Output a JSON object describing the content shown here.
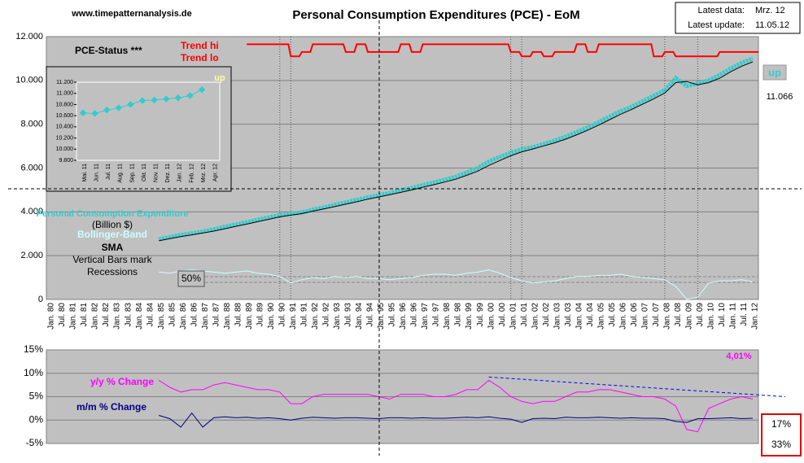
{
  "site": "www.timepatternanalysis.de",
  "info": {
    "latest_data_label": "Latest data:",
    "latest_data": "Mrz. 12",
    "latest_update_label": "Latest update:",
    "latest_update": "11.05.12"
  },
  "status_box": {
    "status": "up",
    "last_value": "11.066"
  },
  "corner_box": [
    "17%",
    "33%"
  ],
  "chart_data": [
    {
      "type": "line",
      "title": "Personal Consumption Expenditures (PCE) - EoM",
      "categories": [
        "Jan. 80",
        "Jul. 80",
        "Jan. 81",
        "Jul. 81",
        "Jan. 82",
        "Jul. 82",
        "Jan. 83",
        "Jul. 83",
        "Jan. 84",
        "Jul. 84",
        "Jan. 85",
        "Jul. 85",
        "Jan. 86",
        "Jul. 86",
        "Jan. 87",
        "Jul. 87",
        "Jan. 88",
        "Jul. 88",
        "Jan. 89",
        "Jul. 89",
        "Jan. 90",
        "Jul. 90",
        "Jan. 91",
        "Jul. 91",
        "Jan. 92",
        "Jul. 92",
        "Jan. 93",
        "Jul. 93",
        "Jan. 94",
        "Jul. 94",
        "Jan. 95",
        "Jul. 95",
        "Jan. 96",
        "Jul. 96",
        "Jan. 97",
        "Jul. 97",
        "Jan. 98",
        "Jul. 98",
        "Jan. 99",
        "Jul. 99",
        "Jan. 00",
        "Jul. 00",
        "Jan. 01",
        "Jul. 01",
        "Jan. 02",
        "Jul. 02",
        "Jan. 03",
        "Jul. 03",
        "Jan. 04",
        "Jul. 04",
        "Jan. 05",
        "Jul. 05",
        "Jan. 06",
        "Jul. 06",
        "Jan. 07",
        "Jul. 07",
        "Jan. 08",
        "Jul. 08",
        "Jan. 09",
        "Jul. 09",
        "Jan. 10",
        "Jul. 10",
        "Jan. 11",
        "Jul. 11",
        "Jan. 12"
      ],
      "ylim": [
        0,
        12000
      ],
      "yticks": [
        0,
        {
          "value": 2000,
          "label": "2.000"
        },
        {
          "value": 4000,
          "label": "4.000"
        },
        {
          "value": 6000,
          "label": "6.000"
        },
        {
          "value": 8000,
          "label": "8.000"
        },
        {
          "value": 10000,
          "label": "10.000"
        },
        {
          "value": 12000,
          "label": "12.000"
        }
      ],
      "grid": true,
      "series": [
        {
          "name": "Personal Consumption Expenditure",
          "color": "#33cccc",
          "values": [
            null,
            null,
            null,
            null,
            null,
            null,
            null,
            null,
            null,
            null,
            2750,
            2850,
            2950,
            3020,
            3100,
            3200,
            3320,
            3420,
            3530,
            3640,
            3750,
            3850,
            3900,
            3970,
            4100,
            4200,
            4320,
            4430,
            4550,
            4660,
            4760,
            4860,
            4980,
            5090,
            5220,
            5340,
            5460,
            5600,
            5800,
            6000,
            6300,
            6500,
            6700,
            6850,
            6950,
            7100,
            7250,
            7430,
            7650,
            7850,
            8100,
            8350,
            8600,
            8800,
            9050,
            9300,
            9550,
            10100,
            9750,
            9850,
            10000,
            10250,
            10550,
            10800,
            11000
          ]
        },
        {
          "name": "SMA",
          "color": "#000000",
          "values": [
            null,
            null,
            null,
            null,
            null,
            null,
            null,
            null,
            null,
            null,
            2680,
            2780,
            2870,
            2950,
            3030,
            3120,
            3230,
            3340,
            3440,
            3550,
            3660,
            3770,
            3850,
            3920,
            4030,
            4130,
            4240,
            4350,
            4460,
            4580,
            4680,
            4780,
            4890,
            5000,
            5120,
            5240,
            5360,
            5490,
            5670,
            5860,
            6120,
            6340,
            6560,
            6740,
            6870,
            7010,
            7150,
            7320,
            7520,
            7730,
            7960,
            8210,
            8460,
            8680,
            8920,
            9160,
            9420,
            9900,
            9950,
            9800,
            9900,
            10100,
            10400,
            10650,
            10850
          ]
        }
      ],
      "unit_label": "(Billion $)",
      "band_label": "Bollinger-Band",
      "note": [
        "Vertical Bars mark",
        "Recessions"
      ],
      "trend": {
        "labels": [
          "Trend hi",
          "Trend lo"
        ],
        "color": "#ff0000",
        "values": [
          null,
          null,
          null,
          null,
          null,
          null,
          null,
          null,
          null,
          null,
          null,
          null,
          null,
          null,
          null,
          null,
          null,
          null,
          11650,
          11650,
          11650,
          11650,
          11100,
          11300,
          11650,
          11650,
          11650,
          11300,
          11650,
          11300,
          11300,
          11300,
          11650,
          11300,
          11650,
          11650,
          11650,
          11650,
          11650,
          11650,
          11650,
          11650,
          11300,
          11100,
          11300,
          11100,
          11300,
          11300,
          11650,
          11300,
          11650,
          11650,
          11650,
          11650,
          11650,
          11100,
          11300,
          11100,
          11100,
          11100,
          11100,
          11300,
          11300,
          11300,
          11300
        ]
      },
      "bandwidth": {
        "label": "50%",
        "color": "#ccffff",
        "values": [
          null,
          null,
          null,
          null,
          null,
          null,
          null,
          null,
          null,
          null,
          1250,
          1200,
          1300,
          1350,
          1300,
          1250,
          1200,
          1250,
          1300,
          1200,
          1150,
          1050,
          750,
          900,
          1000,
          950,
          1050,
          1000,
          1050,
          950,
          950,
          900,
          950,
          1000,
          1100,
          1150,
          1150,
          1100,
          1200,
          1250,
          1350,
          1200,
          1000,
          850,
          750,
          800,
          850,
          950,
          1050,
          1050,
          1100,
          1100,
          1150,
          1050,
          1000,
          950,
          900,
          600,
          0,
          100,
          750,
          850,
          850,
          900,
          800
        ]
      },
      "recession_bars": [
        "Jul. 90",
        "Jan. 91",
        "Jan. 01",
        "Jul. 01",
        "Jan. 08",
        "Jul. 09"
      ]
    },
    {
      "type": "line",
      "title": "PCE-Status ***",
      "categories": [
        "Mai. 11",
        "Jun. 11",
        "Jul. 11",
        "Aug. 11",
        "Sep. 11",
        "Okt. 11",
        "Nov. 11",
        "Dez. 11",
        "Jan. 12",
        "Feb. 12",
        "Mrz. 12",
        "Apr. 12"
      ],
      "ylim": [
        9800,
        11200
      ],
      "yticks": [
        {
          "value": 9800,
          "label": "9.800"
        },
        {
          "value": 10000,
          "label": "10.000"
        },
        {
          "value": 10200,
          "label": "10.200"
        },
        {
          "value": 10400,
          "label": "10.400"
        },
        {
          "value": 10600,
          "label": "10.600"
        },
        {
          "value": 10800,
          "label": "10.800"
        },
        {
          "value": 11000,
          "label": "11.000"
        },
        {
          "value": 11200,
          "label": "11.200"
        }
      ],
      "series": [
        {
          "name": "up",
          "color": "#33cccc",
          "values": [
            10650,
            10640,
            10700,
            10740,
            10800,
            10870,
            10880,
            10900,
            10920,
            10960,
            11066,
            null
          ]
        }
      ]
    },
    {
      "type": "line",
      "ylim": [
        -5,
        15
      ],
      "yticks": [
        {
          "value": -5,
          "label": "-5%"
        },
        {
          "value": 0,
          "label": "0%"
        },
        {
          "value": 5,
          "label": "5%"
        },
        {
          "value": 10,
          "label": "10%"
        },
        {
          "value": 15,
          "label": "15%"
        }
      ],
      "grid": true,
      "latest_label": "4,01%",
      "series": [
        {
          "name": "y/y % Change",
          "color": "#ff00ff",
          "values": [
            null,
            null,
            null,
            null,
            null,
            null,
            null,
            null,
            null,
            null,
            8.5,
            7,
            6,
            6.5,
            6.5,
            7.5,
            8,
            7.5,
            7,
            6.5,
            6.5,
            6,
            3.5,
            3.5,
            5,
            5.5,
            5.5,
            5.5,
            5.5,
            5.5,
            5,
            4.5,
            5.5,
            5.5,
            5.5,
            5,
            5,
            5.5,
            6.5,
            6.5,
            8.5,
            7,
            5,
            4,
            3.5,
            4,
            4,
            5,
            6,
            6,
            6.5,
            6.5,
            6,
            5.5,
            5,
            5,
            4.5,
            3,
            -2,
            -2.5,
            2.5,
            3.5,
            4.5,
            5,
            4.5
          ]
        },
        {
          "name": "m/m % Change",
          "color": "#000080",
          "values": [
            null,
            null,
            null,
            null,
            null,
            null,
            null,
            null,
            null,
            null,
            1,
            0.3,
            -1.5,
            1.5,
            -1.5,
            0.5,
            0.7,
            0.5,
            0.6,
            0.4,
            0.5,
            0.3,
            0,
            0.4,
            0.6,
            0.5,
            0.4,
            0.5,
            0.5,
            0.4,
            0.3,
            0.5,
            0.5,
            0.4,
            0.5,
            0.4,
            0.4,
            0.5,
            0.6,
            0.5,
            0.7,
            0.4,
            0.2,
            -0.5,
            0.3,
            0.4,
            0.3,
            0.6,
            0.5,
            0.5,
            0.6,
            0.5,
            0.4,
            0.5,
            0.4,
            0.4,
            0.3,
            -0.3,
            -0.5,
            0.3,
            0.3,
            0.4,
            0.5,
            0.3,
            0.4
          ]
        }
      ],
      "trend_line": {
        "color": "#0000ff",
        "from": "Jan. 00",
        "values": [
          9.2,
          5
        ]
      }
    }
  ]
}
